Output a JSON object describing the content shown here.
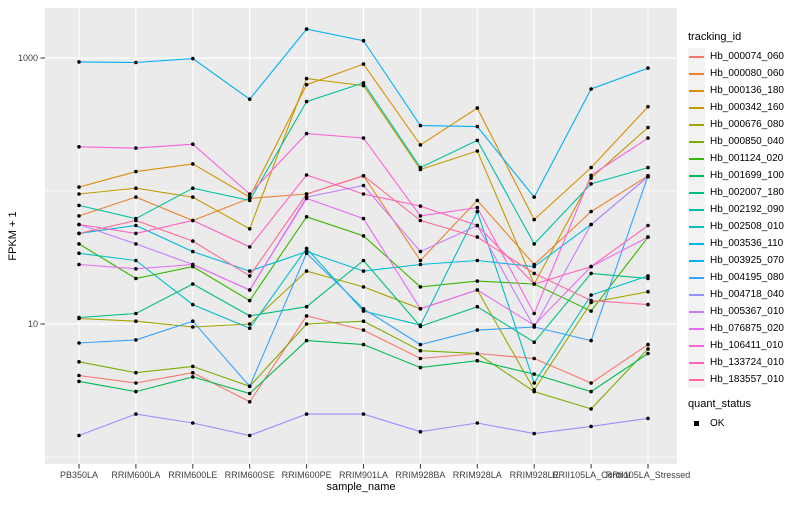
{
  "chart_data": {
    "type": "line",
    "x_label": "sample_name",
    "y_label": "FPKM + 1",
    "y_scale": "log10",
    "ylim": [
      0.9,
      2400
    ],
    "y_tick_labels": [
      "1000",
      "10"
    ],
    "y_tick_values": [
      1000,
      10
    ],
    "y_gridlines_major": [
      1000,
      10
    ],
    "y_gridlines_minor": [
      100,
      1
    ],
    "grid": true,
    "panel_background": "#EBEBEB",
    "grid_color": "#FFFFFF",
    "tick_label_color": "#404040",
    "point_color": "#000000",
    "legend_title": "tracking_id",
    "legend_position": "right",
    "legend_key_fill": "#F2F2F2",
    "secondary_legend": {
      "title": "quant_status",
      "items": [
        {
          "label": "OK",
          "marker": "black-square"
        }
      ]
    },
    "categories": [
      "PB350LA",
      "RRIM600LA",
      "RRIM600LE",
      "RRIM600SE",
      "RRIM600PE",
      "RRIM901LA",
      "RRIM928BA",
      "RRIM928LA",
      "RRIM928LE",
      "RRII105LA_Control",
      "RRII105LA_Stressed"
    ],
    "series": [
      {
        "name": "Hb_000074_060",
        "color": "#F8766D",
        "values": [
          4.1,
          3.6,
          4.3,
          2.6,
          11.5,
          9.0,
          5.5,
          6.0,
          5.5,
          3.6,
          7.0
        ]
      },
      {
        "name": "Hb_000080_060",
        "color": "#EA8331",
        "values": [
          65,
          90,
          60,
          88,
          95,
          130,
          30,
          85,
          28,
          70,
          130
        ]
      },
      {
        "name": "Hb_000136_180",
        "color": "#D89000",
        "values": [
          107,
          140,
          160,
          90,
          630,
          900,
          222,
          420,
          61,
          150,
          430
        ]
      },
      {
        "name": "Hb_000342_160",
        "color": "#C09B00",
        "values": [
          95,
          105,
          90,
          52,
          700,
          620,
          145,
          200,
          20,
          125,
          300
        ]
      },
      {
        "name": "Hb_000676_080",
        "color": "#A3A500",
        "values": [
          11,
          10.5,
          9.5,
          10,
          25,
          19,
          13,
          18,
          3.2,
          14.5,
          17.5
        ]
      },
      {
        "name": "Hb_000850_040",
        "color": "#7CAE00",
        "values": [
          5.2,
          4.3,
          4.8,
          3.4,
          10,
          10.5,
          6.3,
          6.0,
          3.1,
          2.3,
          6.5
        ]
      },
      {
        "name": "Hb_001124_020",
        "color": "#39B600",
        "values": [
          40,
          22,
          27,
          15,
          64,
          46,
          19,
          21,
          20,
          12.5,
          45
        ]
      },
      {
        "name": "Hb_001699_100",
        "color": "#00BB4E",
        "values": [
          3.7,
          3.1,
          4.0,
          3.0,
          7.5,
          7.0,
          4.7,
          5.3,
          4.2,
          3.1,
          6.0
        ]
      },
      {
        "name": "Hb_002007_180",
        "color": "#00BF7D",
        "values": [
          11.2,
          12,
          20,
          11.5,
          13.5,
          30,
          9.6,
          13.5,
          7.3,
          24,
          22
        ]
      },
      {
        "name": "Hb_002192_090",
        "color": "#00C1A3",
        "values": [
          78,
          62,
          105,
          85,
          470,
          650,
          150,
          240,
          40,
          113,
          150
        ]
      },
      {
        "name": "Hb_002508_010",
        "color": "#00BFC4",
        "values": [
          34,
          30,
          14,
          9.3,
          37,
          12.5,
          9.8,
          70,
          3.6,
          16.5,
          23
        ]
      },
      {
        "name": "Hb_003536_110",
        "color": "#00BAE0",
        "values": [
          48,
          55,
          35,
          25,
          35,
          25,
          28,
          30,
          27,
          56,
          128
        ]
      },
      {
        "name": "Hb_003925_070",
        "color": "#00B0F6",
        "values": [
          935,
          925,
          990,
          490,
          1650,
          1350,
          310,
          305,
          90,
          585,
          840
        ]
      },
      {
        "name": "Hb_004195_080",
        "color": "#35A2FF",
        "values": [
          7.2,
          7.6,
          10.5,
          3.4,
          34,
          13,
          7.0,
          9.0,
          9.5,
          7.5,
          130
        ]
      },
      {
        "name": "Hb_004718_040",
        "color": "#9590FF",
        "values": [
          1.45,
          2.1,
          1.8,
          1.45,
          2.1,
          2.1,
          1.55,
          1.8,
          1.5,
          1.7,
          1.95
        ]
      },
      {
        "name": "Hb_005367_010",
        "color": "#C77CFF",
        "values": [
          56,
          40,
          28,
          18,
          90,
          110,
          35,
          55,
          9.5,
          56,
          128
        ]
      },
      {
        "name": "Hb_076875_020",
        "color": "#E76BF3",
        "values": [
          28,
          26,
          28,
          18,
          88,
          62,
          13,
          18,
          9.8,
          27,
          45
        ]
      },
      {
        "name": "Hb_106411_010",
        "color": "#FA62DB",
        "values": [
          215,
          210,
          225,
          95,
          270,
          250,
          65,
          75,
          12,
          131,
          250
        ]
      },
      {
        "name": "Hb_133724_010",
        "color": "#FF62BC",
        "values": [
          56,
          48,
          60,
          38,
          132,
          95,
          77,
          55,
          20,
          27,
          55
        ]
      },
      {
        "name": "Hb_183557_010",
        "color": "#FF6A98",
        "values": [
          48,
          60,
          42,
          23,
          95,
          130,
          60,
          45,
          24,
          15,
          14
        ]
      }
    ]
  }
}
